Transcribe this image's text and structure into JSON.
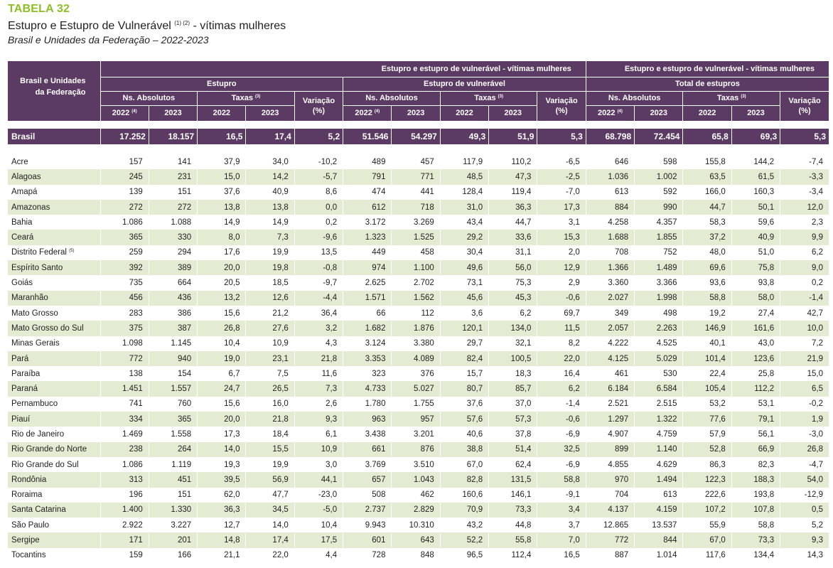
{
  "header": {
    "tag": "TABELA 32",
    "title": "Estupro e Estupro de Vulnerável",
    "title_notes": "(1) (2)",
    "title_suffix": " - vítimas mulheres",
    "subtitle": "Brasil e Unidades da Federação – 2022-2023"
  },
  "table": {
    "first_col_header": "Brasil e Unidades da Federação",
    "group_headers": [
      "Estupro e estupro de vulnerável - vítimas mulheres",
      "Estupro e estupro de vulnerável - vítimas mulheres"
    ],
    "sub_groups": [
      "Estupro",
      "Estupro de vulnerável",
      "Total de estupros"
    ],
    "abs_label": "Ns. Absolutos",
    "rate_label": "Taxas",
    "rate_note": "(3)",
    "var_label": "Variação",
    "var_unit": "(%)",
    "year1": "2022",
    "year1_note": "(4)",
    "year2": "2023",
    "total": {
      "name": "Brasil",
      "values": [
        "17.252",
        "18.157",
        "16,5",
        "17,4",
        "5,2",
        "51.546",
        "54.297",
        "49,3",
        "51,9",
        "5,3",
        "68.798",
        "72.454",
        "65,8",
        "69,3",
        "5,3"
      ]
    },
    "rows": [
      {
        "name": "Acre",
        "note": "",
        "values": [
          "157",
          "141",
          "37,9",
          "34,0",
          "-10,2",
          "489",
          "457",
          "117,9",
          "110,2",
          "-6,5",
          "646",
          "598",
          "155,8",
          "144,2",
          "-7,4"
        ]
      },
      {
        "name": "Alagoas",
        "note": "",
        "values": [
          "245",
          "231",
          "15,0",
          "14,2",
          "-5,7",
          "791",
          "771",
          "48,5",
          "47,3",
          "-2,5",
          "1.036",
          "1.002",
          "63,5",
          "61,5",
          "-3,3"
        ]
      },
      {
        "name": "Amapá",
        "note": "",
        "values": [
          "139",
          "151",
          "37,6",
          "40,9",
          "8,6",
          "474",
          "441",
          "128,4",
          "119,4",
          "-7,0",
          "613",
          "592",
          "166,0",
          "160,3",
          "-3,4"
        ]
      },
      {
        "name": "Amazonas",
        "note": "",
        "values": [
          "272",
          "272",
          "13,8",
          "13,8",
          "0,0",
          "612",
          "718",
          "31,0",
          "36,3",
          "17,3",
          "884",
          "990",
          "44,7",
          "50,1",
          "12,0"
        ]
      },
      {
        "name": "Bahia",
        "note": "",
        "values": [
          "1.086",
          "1.088",
          "14,9",
          "14,9",
          "0,2",
          "3.172",
          "3.269",
          "43,4",
          "44,7",
          "3,1",
          "4.258",
          "4.357",
          "58,3",
          "59,6",
          "2,3"
        ]
      },
      {
        "name": "Ceará",
        "note": "",
        "values": [
          "365",
          "330",
          "8,0",
          "7,3",
          "-9,6",
          "1.323",
          "1.525",
          "29,2",
          "33,6",
          "15,3",
          "1.688",
          "1.855",
          "37,2",
          "40,9",
          "9,9"
        ]
      },
      {
        "name": "Distrito Federal",
        "note": "(5)",
        "values": [
          "259",
          "294",
          "17,6",
          "19,9",
          "13,5",
          "449",
          "458",
          "30,4",
          "31,1",
          "2,0",
          "708",
          "752",
          "48,0",
          "51,0",
          "6,2"
        ]
      },
      {
        "name": "Espírito Santo",
        "note": "",
        "values": [
          "392",
          "389",
          "20,0",
          "19,8",
          "-0,8",
          "974",
          "1.100",
          "49,6",
          "56,0",
          "12,9",
          "1.366",
          "1.489",
          "69,6",
          "75,8",
          "9,0"
        ]
      },
      {
        "name": "Goiás",
        "note": "",
        "values": [
          "735",
          "664",
          "20,5",
          "18,5",
          "-9,7",
          "2.625",
          "2.702",
          "73,1",
          "75,3",
          "2,9",
          "3.360",
          "3.366",
          "93,6",
          "93,8",
          "0,2"
        ]
      },
      {
        "name": "Maranhão",
        "note": "",
        "values": [
          "456",
          "436",
          "13,2",
          "12,6",
          "-4,4",
          "1.571",
          "1.562",
          "45,6",
          "45,3",
          "-0,6",
          "2.027",
          "1.998",
          "58,8",
          "58,0",
          "-1,4"
        ]
      },
      {
        "name": "Mato Grosso",
        "note": "",
        "values": [
          "283",
          "386",
          "15,6",
          "21,2",
          "36,4",
          "66",
          "112",
          "3,6",
          "6,2",
          "69,7",
          "349",
          "498",
          "19,2",
          "27,4",
          "42,7"
        ]
      },
      {
        "name": "Mato Grosso do Sul",
        "note": "",
        "values": [
          "375",
          "387",
          "26,8",
          "27,6",
          "3,2",
          "1.682",
          "1.876",
          "120,1",
          "134,0",
          "11,5",
          "2.057",
          "2.263",
          "146,9",
          "161,6",
          "10,0"
        ]
      },
      {
        "name": "Minas Gerais",
        "note": "",
        "values": [
          "1.098",
          "1.145",
          "10,4",
          "10,9",
          "4,3",
          "3.124",
          "3.380",
          "29,7",
          "32,1",
          "8,2",
          "4.222",
          "4.525",
          "40,1",
          "43,0",
          "7,2"
        ]
      },
      {
        "name": "Pará",
        "note": "",
        "values": [
          "772",
          "940",
          "19,0",
          "23,1",
          "21,8",
          "3.353",
          "4.089",
          "82,4",
          "100,5",
          "22,0",
          "4.125",
          "5.029",
          "101,4",
          "123,6",
          "21,9"
        ]
      },
      {
        "name": "Paraíba",
        "note": "",
        "values": [
          "138",
          "154",
          "6,7",
          "7,5",
          "11,6",
          "323",
          "376",
          "15,7",
          "18,3",
          "16,4",
          "461",
          "530",
          "22,4",
          "25,8",
          "15,0"
        ]
      },
      {
        "name": "Paraná",
        "note": "",
        "values": [
          "1.451",
          "1.557",
          "24,7",
          "26,5",
          "7,3",
          "4.733",
          "5.027",
          "80,7",
          "85,7",
          "6,2",
          "6.184",
          "6.584",
          "105,4",
          "112,2",
          "6,5"
        ]
      },
      {
        "name": "Pernambuco",
        "note": "",
        "values": [
          "741",
          "760",
          "15,6",
          "16,0",
          "2,6",
          "1.780",
          "1.755",
          "37,6",
          "37,0",
          "-1,4",
          "2.521",
          "2.515",
          "53,2",
          "53,1",
          "-0,2"
        ]
      },
      {
        "name": "Piauí",
        "note": "",
        "values": [
          "334",
          "365",
          "20,0",
          "21,8",
          "9,3",
          "963",
          "957",
          "57,6",
          "57,3",
          "-0,6",
          "1.297",
          "1.322",
          "77,6",
          "79,1",
          "1,9"
        ]
      },
      {
        "name": "Rio de Janeiro",
        "note": "",
        "values": [
          "1.469",
          "1.558",
          "17,3",
          "18,4",
          "6,1",
          "3.438",
          "3.201",
          "40,6",
          "37,8",
          "-6,9",
          "4.907",
          "4.759",
          "57,9",
          "56,1",
          "-3,0"
        ]
      },
      {
        "name": "Rio Grande do Norte",
        "note": "",
        "values": [
          "238",
          "264",
          "14,0",
          "15,5",
          "10,9",
          "661",
          "876",
          "38,8",
          "51,4",
          "32,5",
          "899",
          "1.140",
          "52,8",
          "66,9",
          "26,8"
        ]
      },
      {
        "name": "Rio Grande do Sul",
        "note": "",
        "values": [
          "1.086",
          "1.119",
          "19,3",
          "19,9",
          "3,0",
          "3.769",
          "3.510",
          "67,0",
          "62,4",
          "-6,9",
          "4.855",
          "4.629",
          "86,3",
          "82,3",
          "-4,7"
        ]
      },
      {
        "name": "Rondônia",
        "note": "",
        "values": [
          "313",
          "451",
          "39,5",
          "56,9",
          "44,1",
          "657",
          "1.043",
          "82,8",
          "131,5",
          "58,8",
          "970",
          "1.494",
          "122,3",
          "188,3",
          "54,0"
        ]
      },
      {
        "name": "Roraima",
        "note": "",
        "values": [
          "196",
          "151",
          "62,0",
          "47,7",
          "-23,0",
          "508",
          "462",
          "160,6",
          "146,1",
          "-9,1",
          "704",
          "613",
          "222,6",
          "193,8",
          "-12,9"
        ]
      },
      {
        "name": "Santa Catarina",
        "note": "",
        "values": [
          "1.400",
          "1.330",
          "36,3",
          "34,5",
          "-5,0",
          "2.737",
          "2.829",
          "70,9",
          "73,3",
          "3,4",
          "4.137",
          "4.159",
          "107,2",
          "107,8",
          "0,5"
        ]
      },
      {
        "name": "São Paulo",
        "note": "",
        "values": [
          "2.922",
          "3.227",
          "12,7",
          "14,0",
          "10,4",
          "9.943",
          "10.310",
          "43,2",
          "44,8",
          "3,7",
          "12.865",
          "13.537",
          "55,9",
          "58,8",
          "5,2"
        ]
      },
      {
        "name": "Sergipe",
        "note": "",
        "values": [
          "171",
          "201",
          "14,8",
          "17,4",
          "17,5",
          "601",
          "643",
          "52,2",
          "55,8",
          "7,0",
          "772",
          "844",
          "67,0",
          "73,3",
          "9,3"
        ]
      },
      {
        "name": "Tocantins",
        "note": "",
        "values": [
          "159",
          "166",
          "21,1",
          "22,0",
          "4,4",
          "728",
          "848",
          "96,5",
          "112,4",
          "16,5",
          "887",
          "1.014",
          "117,6",
          "134,4",
          "14,3"
        ]
      }
    ]
  },
  "colors": {
    "header_bg": "#5b3a63",
    "tag_green": "#8cbf26",
    "row_stripe": "#e3ecd2"
  }
}
